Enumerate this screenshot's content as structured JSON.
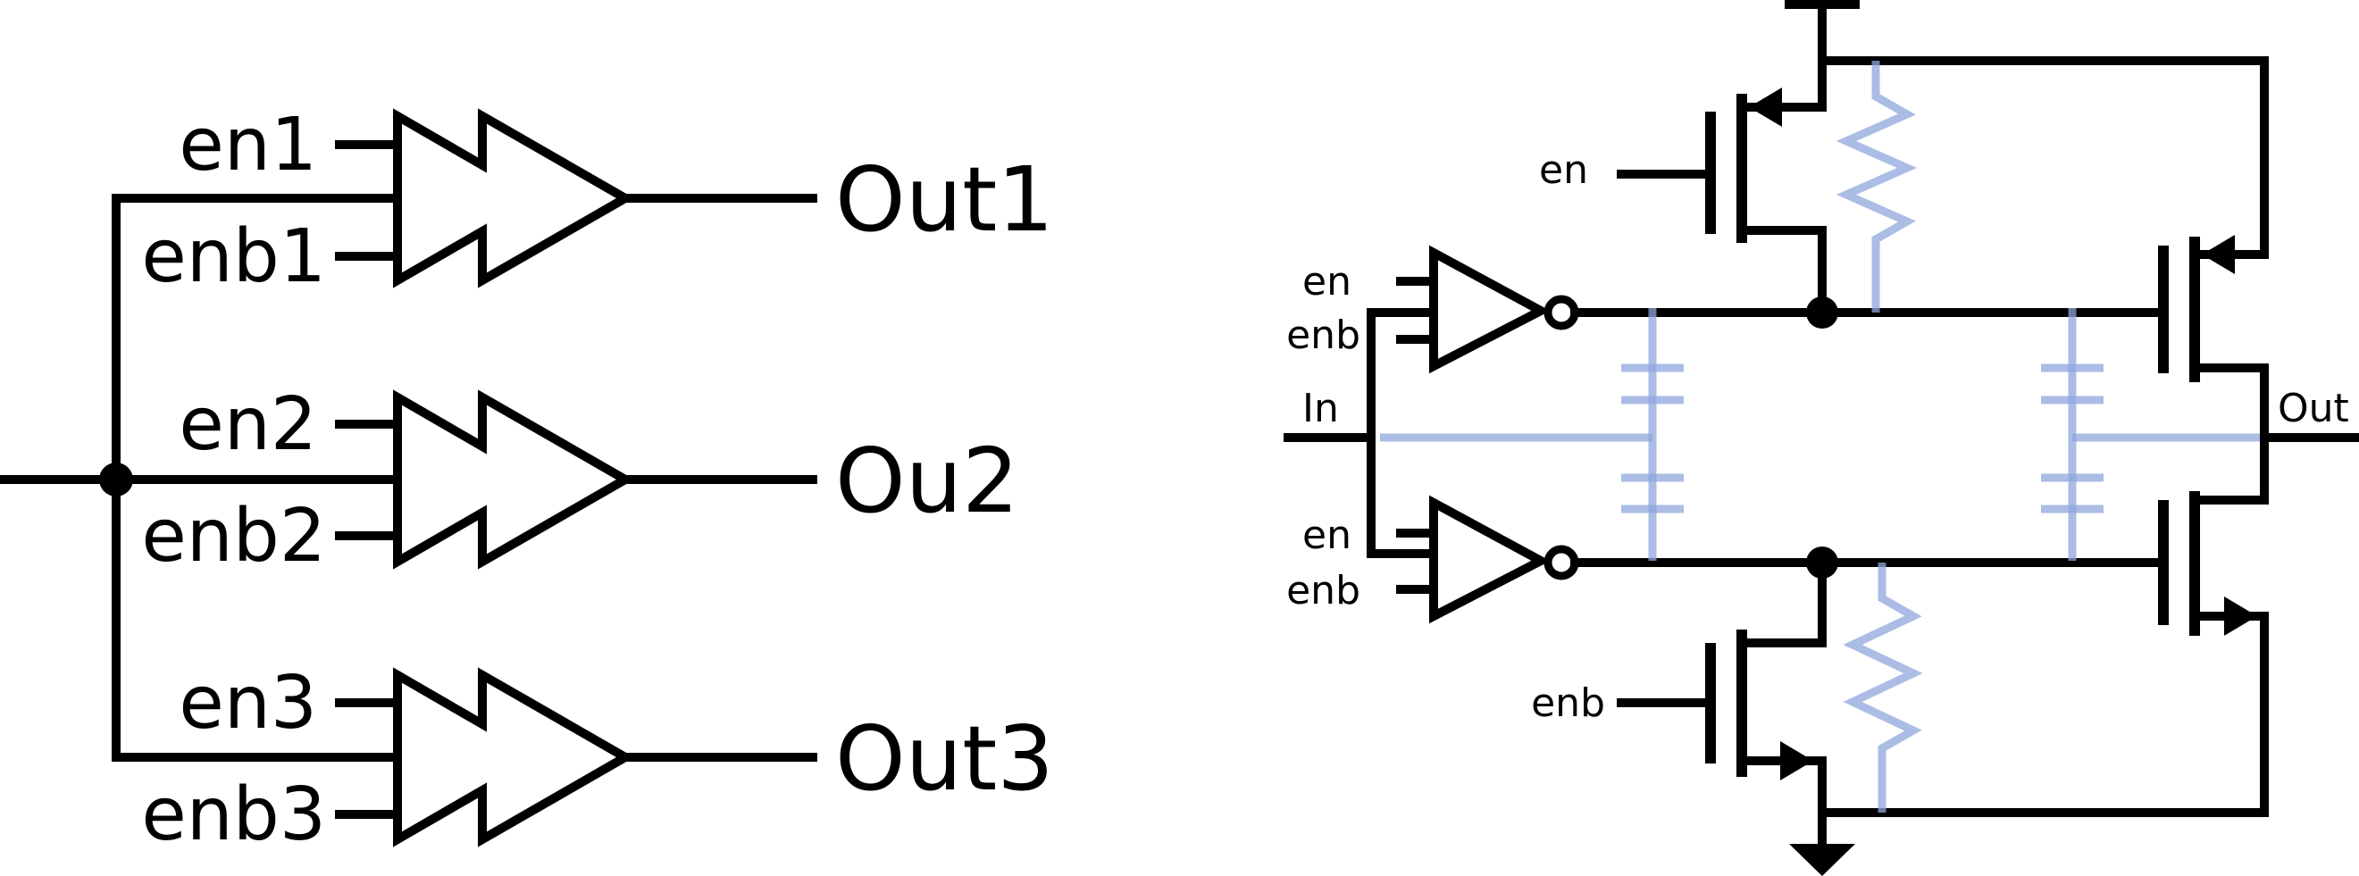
{
  "colors": {
    "wire": "#000000",
    "parasitic": "#8fa6dc",
    "background": "#ffffff"
  },
  "left": {
    "buffers": [
      {
        "en": "en1",
        "enb": "enb1",
        "out": "Out1"
      },
      {
        "en": "en2",
        "enb": "enb2",
        "out": "Ou2"
      },
      {
        "en": "en3",
        "enb": "enb3",
        "out": "Out3"
      }
    ]
  },
  "right": {
    "input_label": "In",
    "output_label": "Out",
    "top_inverter": {
      "en": "en",
      "enb": "enb"
    },
    "bottom_inverter": {
      "en": "en",
      "enb": "enb"
    },
    "pmos_gate_label": "en",
    "nmos_gate_label": "enb"
  }
}
